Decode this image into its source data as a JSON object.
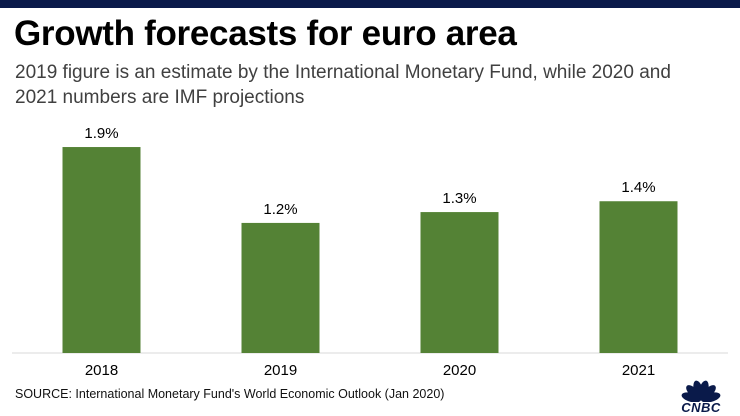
{
  "header": {
    "title": "Growth forecasts for euro area",
    "subtitle": "2019 figure is an estimate by the International Monetary Fund, while 2020 and 2021 numbers are IMF projections"
  },
  "footer": {
    "source": "SOURCE: International Monetary Fund's World Economic Outlook (Jan 2020)",
    "logo_text": "CNBC"
  },
  "colors": {
    "bar": "#548235",
    "axis": "#d9d9d9",
    "top_bar": "#0a1a4a"
  },
  "chart_data": {
    "type": "bar",
    "title": "Growth forecasts for euro area",
    "categories": [
      "2018",
      "2019",
      "2020",
      "2021"
    ],
    "values": [
      1.9,
      1.2,
      1.3,
      1.4
    ],
    "value_labels": [
      "1.9%",
      "1.2%",
      "1.3%",
      "1.4%"
    ],
    "xlabel": "",
    "ylabel": "",
    "ylim": [
      0,
      2.0
    ],
    "grid": false,
    "legend": "none"
  }
}
